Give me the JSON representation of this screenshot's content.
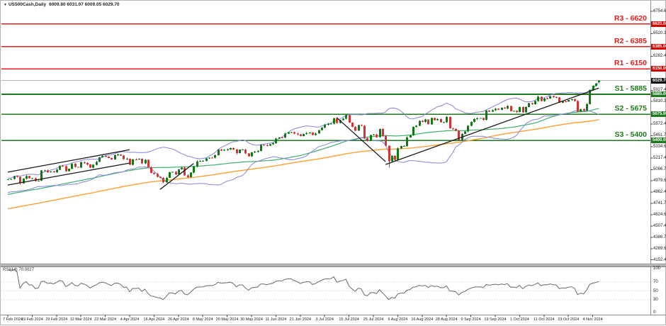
{
  "header": {
    "collapse_icon": "▼",
    "symbol": "US500Cash,Daily",
    "ohlc": "6009.80 6031.07 6009.05 6029.70"
  },
  "colors": {
    "up": "#0e7a12",
    "down": "#d23535",
    "bb": "#8486d8",
    "ma_fast": "#3fae6e",
    "ma_slow": "#ffa033",
    "resistance": "#e01f1f",
    "support": "#1f7a1f",
    "trend": "#1a1a1a",
    "price_line": "#bbbbbb",
    "rsi_line": "#6a6a6a",
    "rsi_grid": "#cccccc",
    "badge_resistance": "#d40000",
    "badge_support": "#1e7a1e",
    "badge_price": "#111111",
    "axis": "#8c8c8c"
  },
  "sr_levels": {
    "resistance": [
      {
        "label": "R3 - 6620",
        "price": 6620
      },
      {
        "label": "R2 - 6385",
        "price": 6385
      },
      {
        "label": "R1 - 6150",
        "price": 6150
      }
    ],
    "support": [
      {
        "label": "S1 - 5885",
        "price": 5885
      },
      {
        "label": "S2 - 5675",
        "price": 5675
      },
      {
        "label": "S3 - 5400",
        "price": 5400
      }
    ]
  },
  "current_price": {
    "value": 6029.7,
    "label": "6029.70"
  },
  "price_axis": {
    "ticks": [
      "6754.60",
      "6520.30",
      "6282.45",
      "5927.45",
      "5810.30",
      "5572.45",
      "5451.75",
      "5334.60",
      "5217.45",
      "5096.75",
      "4979.60",
      "4862.45",
      "4741.75",
      "4624.60",
      "4507.45",
      "4386.75",
      "4269.60",
      "4152.45"
    ],
    "badges": [
      {
        "text": "6620.00",
        "type": "resistance"
      },
      {
        "text": "6385.00",
        "type": "resistance"
      },
      {
        "text": "6150.00",
        "type": "resistance"
      },
      {
        "text": "6029.70",
        "type": "price"
      },
      {
        "text": "5885.00",
        "type": "support"
      },
      {
        "text": "5675.00",
        "type": "support"
      },
      {
        "text": "5400.00",
        "type": "support"
      }
    ]
  },
  "date_axis": {
    "bars_per_label": 8,
    "labels": [
      "7 Feb 2024",
      "19 Feb 2024",
      "29 Feb 2024",
      "12 Mar 2024",
      "22 Mar 2024",
      "4 Apr 2024",
      "16 Apr 2024",
      "26 Apr 2024",
      "8 May 2024",
      "20 May 2024",
      "30 May 2024",
      "11 Jun 2024",
      "21 Jun 2024",
      "3 Jul 2024",
      "15 Jul 2024",
      "25 Jul 2024",
      "6 Aug 2024",
      "16 Aug 2024",
      "28 Aug 2024",
      "9 Sep 2024",
      "19 Sep 2024",
      "1 Oct 2024",
      "11 Oct 2024",
      "23 Oct 2024",
      "4 Nov 2024"
    ]
  },
  "rsi_panel": {
    "label": "RSI(14) 70.0027",
    "period": 14,
    "grid_levels": [
      70,
      50,
      30
    ],
    "scale_labels": [
      {
        "text": "100",
        "value": 100
      },
      {
        "text": "70",
        "value": 70
      },
      {
        "text": "50",
        "value": 50
      },
      {
        "text": "30",
        "value": 30
      },
      {
        "text": "0",
        "value": 0
      }
    ]
  },
  "chart_data": {
    "type": "candlestick",
    "title": "US500Cash Daily",
    "ylim": [
      4120,
      6790
    ],
    "first_open": 4988,
    "closes": [
      4995,
      4998,
      5027,
      5022,
      4953,
      5001,
      5030,
      5006,
      5006,
      4976,
      4982,
      5087,
      5089,
      5070,
      5078,
      5070,
      5096,
      5137,
      5131,
      5079,
      5105,
      5157,
      5124,
      5118,
      5175,
      5165,
      5150,
      5117,
      5149,
      5178,
      5225,
      5241,
      5234,
      5218,
      5204,
      5248,
      5254,
      5243,
      5206,
      5211,
      5147,
      5204,
      5202,
      5210,
      5161,
      5199,
      5123,
      5062,
      5051,
      5022,
      5011,
      4967,
      5011,
      5071,
      5072,
      5048,
      5100,
      5116,
      5036,
      5018,
      5064,
      5128,
      5181,
      5187,
      5188,
      5214,
      5223,
      5221,
      5246,
      5308,
      5297,
      5303,
      5308,
      5321,
      5307,
      5268,
      5305,
      5306,
      5267,
      5235,
      5277,
      5283,
      5291,
      5354,
      5353,
      5347,
      5361,
      5375,
      5421,
      5434,
      5432,
      5473,
      5487,
      5487,
      5473,
      5465,
      5448,
      5469,
      5478,
      5483,
      5460,
      5475,
      5509,
      5537,
      5567,
      5573,
      5577,
      5634,
      5585,
      5615,
      5631,
      5667,
      5588,
      5545,
      5505,
      5564,
      5556,
      5427,
      5399,
      5459,
      5464,
      5436,
      5522,
      5446,
      5346,
      5186,
      5240,
      5200,
      5319,
      5344,
      5344,
      5434,
      5455,
      5543,
      5554,
      5608,
      5597,
      5621,
      5571,
      5635,
      5616,
      5625,
      5592,
      5592,
      5648,
      5529,
      5520,
      5503,
      5408,
      5471,
      5496,
      5554,
      5595,
      5626,
      5633,
      5635,
      5618,
      5714,
      5703,
      5719,
      5733,
      5722,
      5745,
      5738,
      5762,
      5709,
      5710,
      5700,
      5751,
      5696,
      5751,
      5792,
      5780,
      5815,
      5860,
      5815,
      5842,
      5841,
      5865,
      5854,
      5851,
      5797,
      5810,
      5808,
      5824,
      5833,
      5814,
      5705,
      5729,
      5713,
      5783,
      5929,
      5973,
      5996,
      6029.7
    ],
    "wick_pad_range": [
      2,
      10
    ],
    "wick_overrides": {
      "4": {
        "low": 4940
      },
      "51": {
        "low": 4953
      },
      "111": {
        "high": 5669
      },
      "125": {
        "low": 5119
      },
      "148": {
        "low": 5395
      },
      "194": {
        "open": 6009.8,
        "high": 6031.07,
        "low": 6009.05,
        "close": 6029.7
      }
    },
    "trendlines": [
      {
        "name": "channel-lower",
        "bars": [
          0,
          40
        ],
        "prices": [
          4935,
          5165
        ]
      },
      {
        "name": "channel-upper",
        "bars": [
          0,
          40
        ],
        "prices": [
          5070,
          5305
        ]
      },
      {
        "name": "recovery-line",
        "bars": [
          50,
          61
        ],
        "prices": [
          4890,
          5160
        ]
      },
      {
        "name": "july-decline-line",
        "bars": [
          108,
          124
        ],
        "prices": [
          5640,
          5180
        ]
      },
      {
        "name": "august-uptrend-line",
        "bars": [
          124,
          194
        ],
        "prices": [
          5150,
          5950
        ]
      }
    ],
    "overlays": {
      "bb_period": 20,
      "bb_dev": 2,
      "ma_fast_period": 50,
      "ma_slow_period": 100
    },
    "prehistory": {
      "bars": 110,
      "start": 4320,
      "end": 4978,
      "wave_amp": 14,
      "wave_freq": 0.55
    }
  }
}
